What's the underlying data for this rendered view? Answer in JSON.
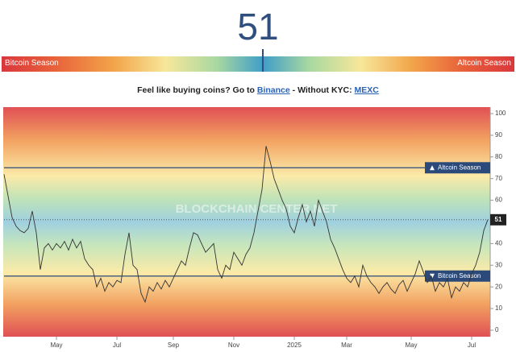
{
  "index_value": 51,
  "scale": {
    "left_label": "Bitcoin Season",
    "right_label": "Altcoin Season"
  },
  "promo": {
    "text": "Feel like buying coins? Go to",
    "link1": "Binance",
    "middle": "- Without KYC:",
    "link2": "MEXC"
  },
  "chart_data": {
    "type": "line",
    "watermark": "BLOCKCHAIN CENTER.NET",
    "color": "#333333",
    "values": [
      72,
      62,
      52,
      48,
      46,
      45,
      47,
      55,
      45,
      28,
      38,
      40,
      37,
      40,
      38,
      41,
      37,
      42,
      38,
      41,
      33,
      30,
      28,
      20,
      24,
      18,
      22,
      20,
      23,
      22,
      35,
      45,
      30,
      28,
      17,
      13,
      20,
      18,
      22,
      19,
      23,
      20,
      24,
      28,
      32,
      30,
      38,
      45,
      44,
      40,
      36,
      38,
      40,
      28,
      24,
      30,
      28,
      36,
      33,
      30,
      35,
      38,
      45,
      55,
      65,
      85,
      78,
      70,
      65,
      60,
      56,
      48,
      45,
      52,
      58,
      50,
      55,
      48,
      60,
      55,
      50,
      42,
      38,
      33,
      28,
      24,
      22,
      25,
      20,
      30,
      25,
      22,
      20,
      17,
      20,
      22,
      19,
      17,
      21,
      23,
      18,
      22,
      26,
      32,
      27,
      22,
      25,
      18,
      22,
      20,
      24,
      15,
      20,
      18,
      22,
      20,
      26,
      30,
      36,
      46,
      51
    ],
    "xlim": [
      0,
      120
    ],
    "xticks": [
      {
        "value": 13,
        "label": "May"
      },
      {
        "value": 28,
        "label": "Jul"
      },
      {
        "value": 42,
        "label": "Sep"
      },
      {
        "value": 57,
        "label": "Nov"
      },
      {
        "value": 72,
        "label": "2025"
      },
      {
        "value": 85,
        "label": "Mar"
      },
      {
        "value": 101,
        "label": "May"
      },
      {
        "value": 116,
        "label": "Jul"
      }
    ],
    "ylim": [
      -3,
      103
    ],
    "yticks": [
      0,
      10,
      20,
      30,
      40,
      50,
      60,
      70,
      80,
      90,
      100
    ],
    "reference_lines": [
      {
        "value": 75,
        "label": "Altcoin Season",
        "direction": "up"
      },
      {
        "value": 25,
        "label": "Bitcoin Season",
        "direction": "down"
      }
    ]
  }
}
